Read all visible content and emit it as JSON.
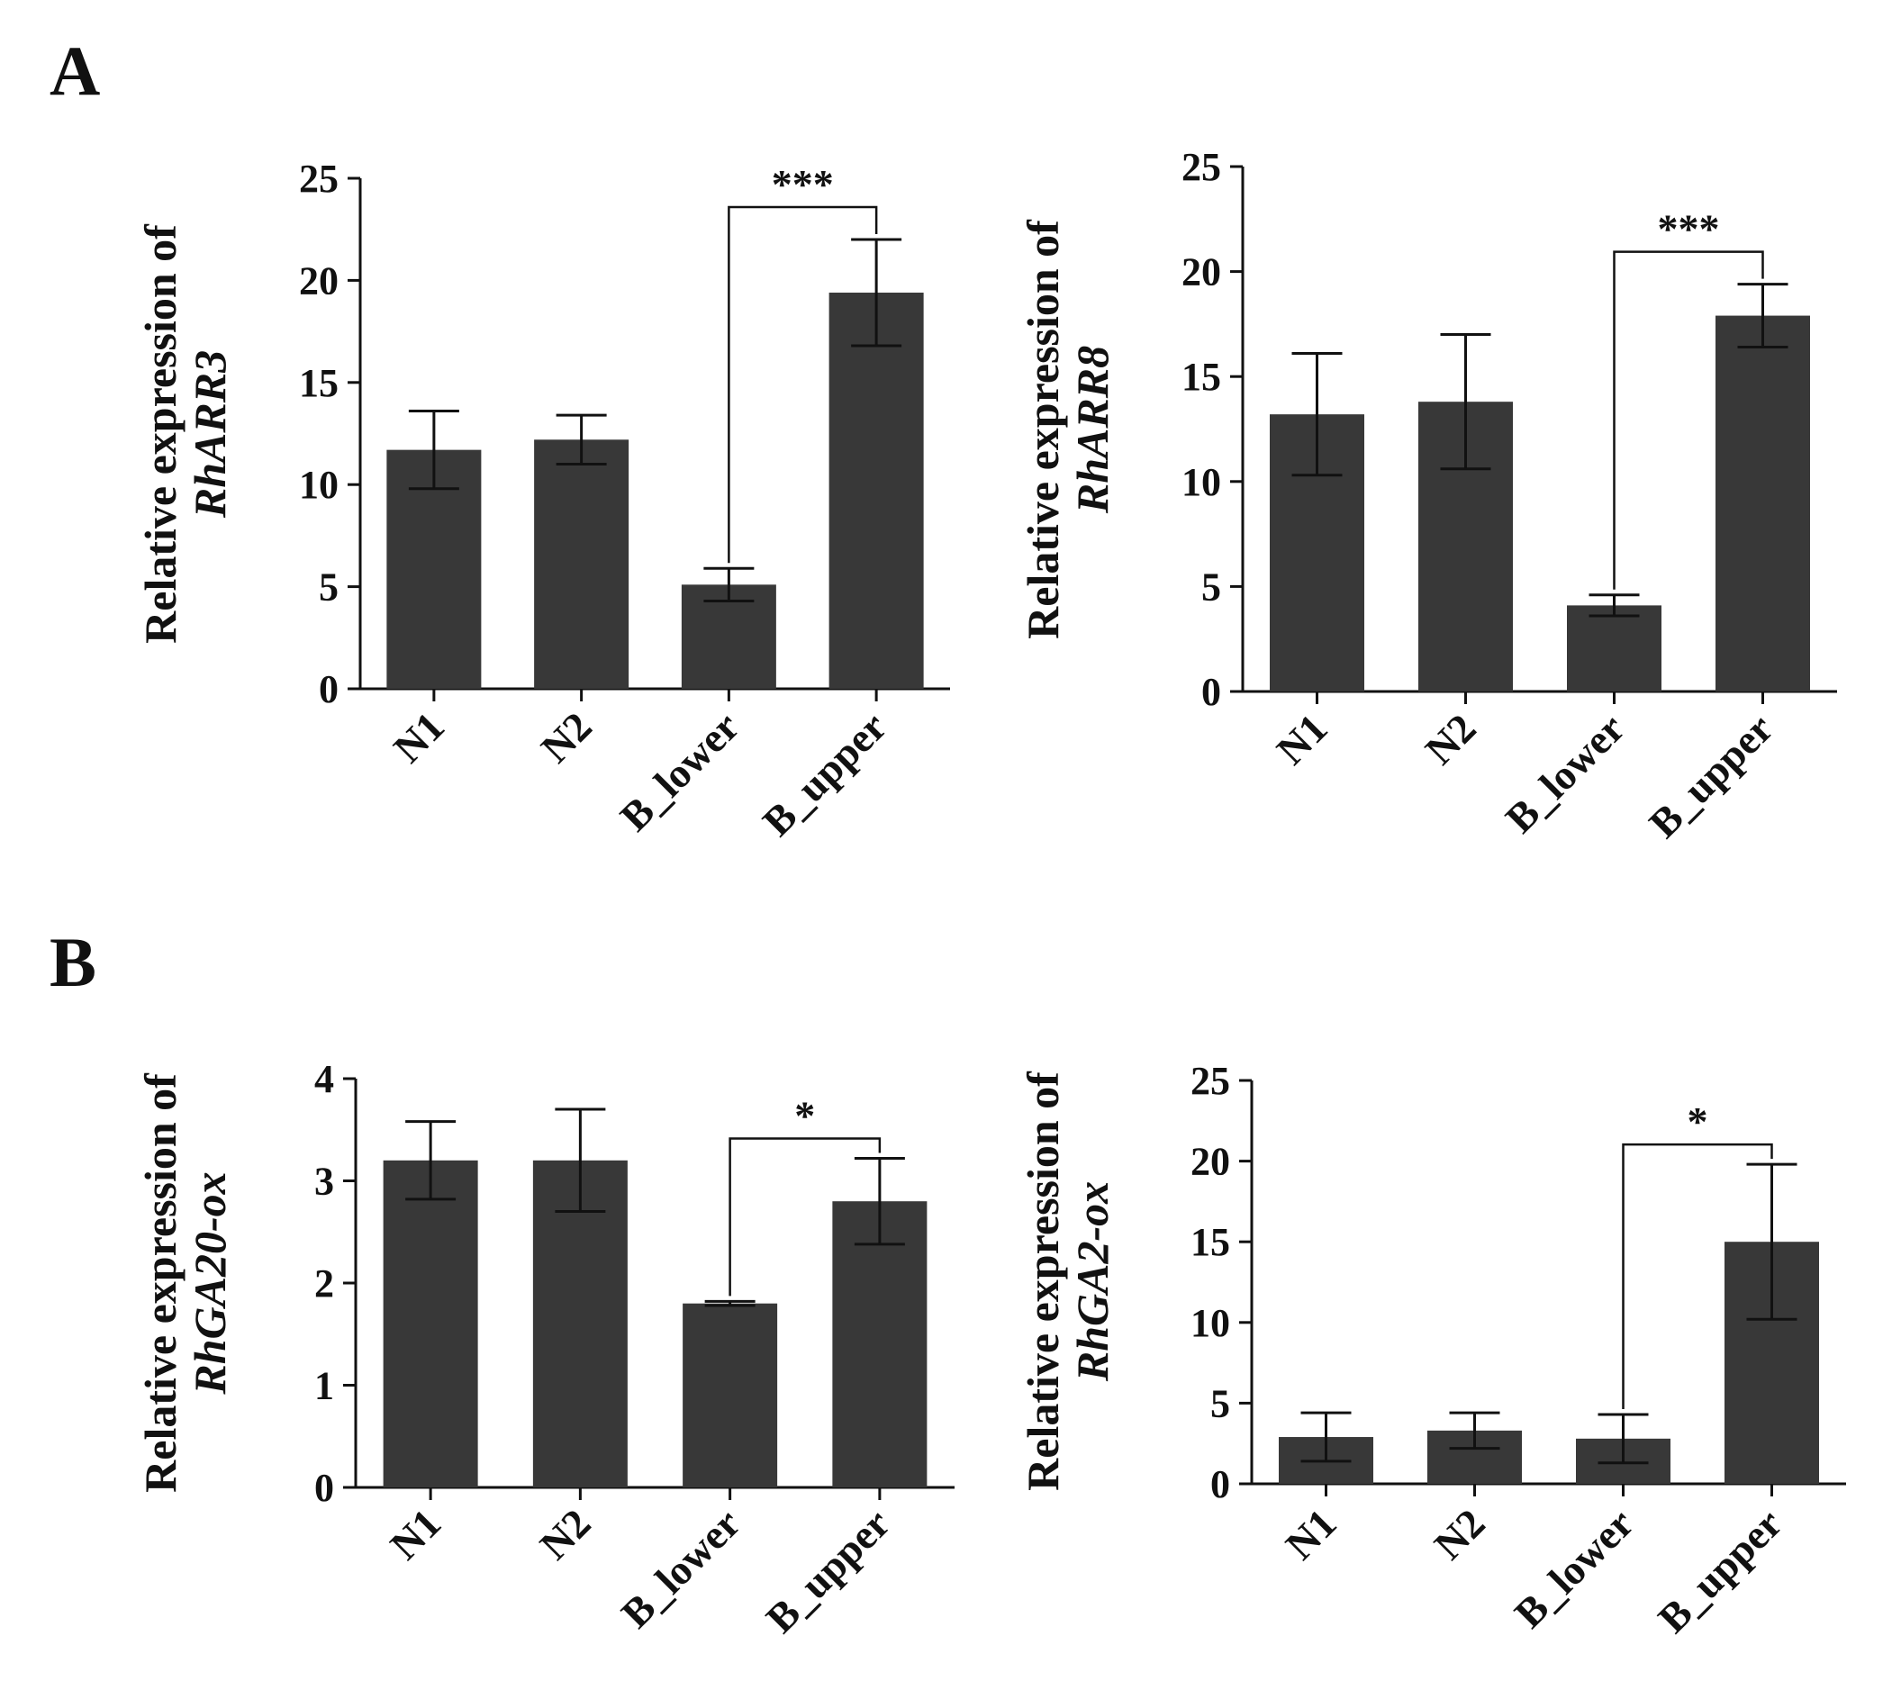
{
  "panels": [
    {
      "letter": "A"
    },
    {
      "letter": "B"
    }
  ],
  "chart_data": [
    {
      "type": "bar",
      "panel": "A",
      "ylabel_line1": "Relative expression of",
      "ylabel_gene": "RhARR3",
      "categories": [
        "N1",
        "N2",
        "B_lower",
        "B_upper"
      ],
      "values": [
        11.7,
        12.2,
        5.1,
        19.4
      ],
      "errors": [
        1.9,
        1.2,
        0.8,
        2.6
      ],
      "ylim": [
        0,
        25
      ],
      "yticks": [
        0,
        5,
        10,
        15,
        20,
        25
      ],
      "significance": {
        "from": 2,
        "to": 3,
        "label": "***"
      },
      "bar_color": "#383838"
    },
    {
      "type": "bar",
      "panel": "A",
      "ylabel_line1": "Relative expression of",
      "ylabel_gene": "RhARR8",
      "categories": [
        "N1",
        "N2",
        "B_lower",
        "B_upper"
      ],
      "values": [
        13.2,
        13.8,
        4.1,
        17.9
      ],
      "errors": [
        2.9,
        3.2,
        0.5,
        1.5
      ],
      "ylim": [
        0,
        25
      ],
      "yticks": [
        0,
        5,
        10,
        15,
        20,
        25
      ],
      "significance": {
        "from": 2,
        "to": 3,
        "label": "***"
      },
      "bar_color": "#383838"
    },
    {
      "type": "bar",
      "panel": "B",
      "ylabel_line1": "Relative expression of",
      "ylabel_gene": "RhGA20-ox",
      "categories": [
        "N1",
        "N2",
        "B_lower",
        "B_upper"
      ],
      "values": [
        3.2,
        3.2,
        1.8,
        2.8
      ],
      "errors": [
        0.38,
        0.5,
        0.02,
        0.42
      ],
      "ylim": [
        0,
        4
      ],
      "yticks": [
        0,
        1,
        2,
        3,
        4
      ],
      "significance": {
        "from": 2,
        "to": 3,
        "label": "*"
      },
      "bar_color": "#383838"
    },
    {
      "type": "bar",
      "panel": "B",
      "ylabel_line1": "Relative expression of",
      "ylabel_gene": "RhGA2-ox",
      "categories": [
        "N1",
        "N2",
        "B_lower",
        "B_upper"
      ],
      "values": [
        2.9,
        3.3,
        2.8,
        15.0
      ],
      "errors": [
        1.5,
        1.1,
        1.5,
        4.8
      ],
      "ylim": [
        0,
        25
      ],
      "yticks": [
        0,
        5,
        10,
        15,
        20,
        25
      ],
      "significance": {
        "from": 2,
        "to": 3,
        "label": "*"
      },
      "bar_color": "#383838"
    }
  ]
}
